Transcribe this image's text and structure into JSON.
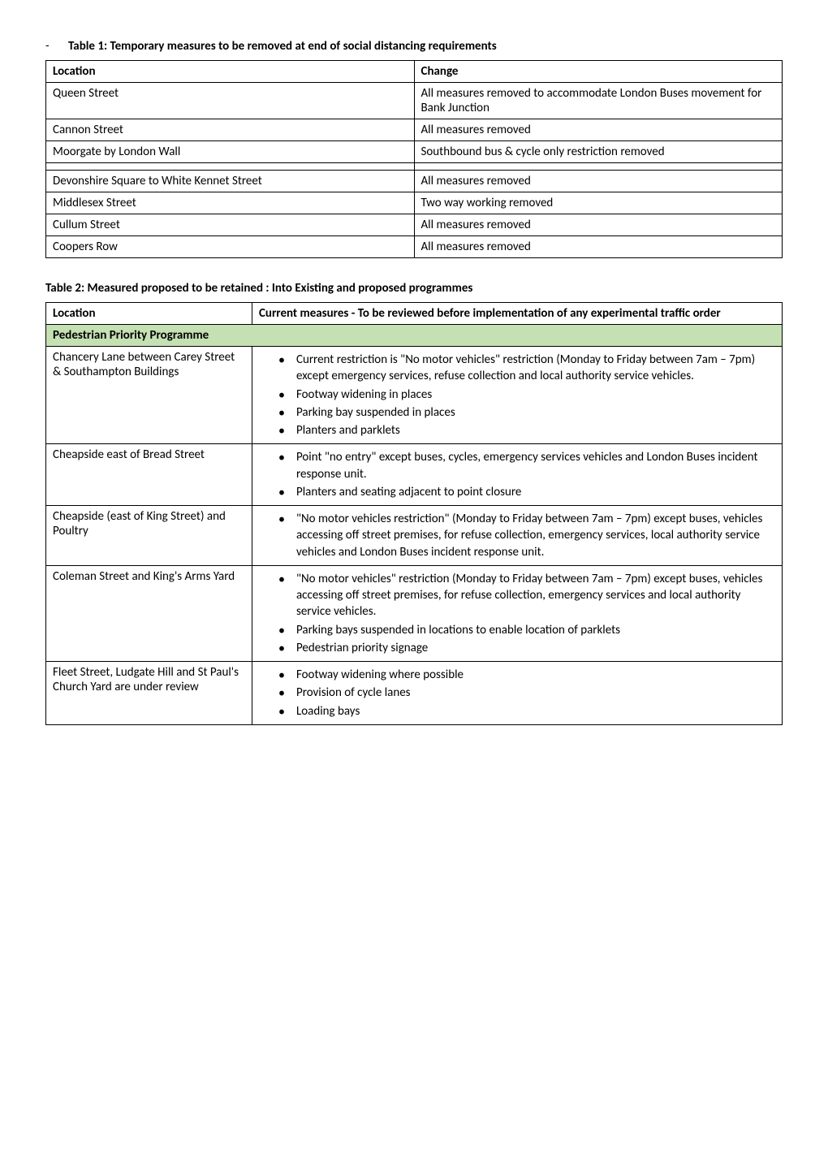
{
  "table1": {
    "heading_prefix": "-",
    "heading": "Table 1: Temporary measures to be removed at end of social distancing requirements",
    "columns": [
      "Location",
      "Change"
    ],
    "rows": [
      [
        "Queen Street",
        "All measures removed to accommodate London Buses movement for Bank Junction"
      ],
      [
        "Cannon Street",
        "All measures removed"
      ],
      [
        "Moorgate by London Wall",
        "Southbound bus & cycle only restriction removed"
      ],
      [
        "",
        ""
      ],
      [
        "Devonshire Square to White Kennet Street",
        "All measures removed"
      ],
      [
        "Middlesex Street",
        "Two way working removed"
      ],
      [
        "Cullum Street",
        "All measures removed"
      ],
      [
        "Coopers Row",
        "All measures removed"
      ]
    ]
  },
  "table2": {
    "heading": "Table 2:  Measured proposed to be retained : Into Existing and proposed programmes",
    "columns": [
      "Location",
      "Current measures - To be reviewed before implementation of any experimental traffic order"
    ],
    "section_label": "Pedestrian Priority Programme",
    "section_bg": "#c5e0b3",
    "rows": [
      {
        "location": "Chancery Lane between Carey Street & Southampton Buildings",
        "bullets": [
          "Current restriction is \"No motor vehicles\" restriction (Monday to Friday between 7am – 7pm) except emergency services, refuse collection and local authority service vehicles.",
          "Footway widening in places",
          "Parking bay suspended in places",
          "Planters and parklets"
        ]
      },
      {
        "location": "Cheapside east of Bread Street",
        "bullets": [
          "Point \"no entry\" except buses, cycles, emergency services vehicles and London Buses incident response unit.",
          "Planters and seating adjacent to point closure"
        ]
      },
      {
        "location": "Cheapside (east of King Street) and Poultry",
        "bullets": [
          "\"No motor vehicles restriction\" (Monday to Friday between 7am – 7pm) except buses, vehicles accessing off street premises, for refuse collection, emergency services, local authority service vehicles and London Buses incident response unit."
        ]
      },
      {
        "location": "Coleman Street and King's Arms Yard",
        "bullets": [
          "\"No motor vehicles\" restriction (Monday to Friday between 7am – 7pm) except buses, vehicles accessing off street premises, for refuse collection, emergency services and local authority service vehicles.",
          "Parking bays suspended in locations to enable location of parklets",
          "Pedestrian priority signage"
        ]
      },
      {
        "location": "Fleet Street, Ludgate Hill and St Paul's Church Yard are under review",
        "bullets": [
          "Footway widening where possible",
          "Provision of cycle lanes",
          "Loading bays"
        ]
      }
    ]
  },
  "colors": {
    "border": "#000000",
    "text": "#000000",
    "bg": "#ffffff",
    "section_bg": "#c5e0b3"
  }
}
